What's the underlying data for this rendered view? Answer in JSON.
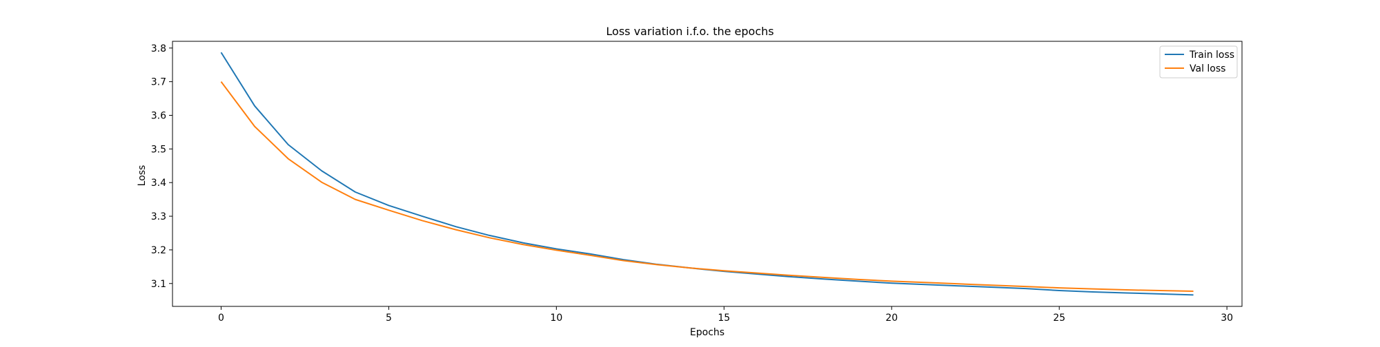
{
  "chart_data": {
    "type": "line",
    "title": "Loss variation i.f.o. the epochs",
    "xlabel": "Epochs",
    "ylabel": "Loss",
    "xlim": [
      -1.45,
      30.45
    ],
    "ylim": [
      3.032,
      3.82
    ],
    "xticks": [
      0,
      5,
      10,
      15,
      20,
      25,
      30
    ],
    "yticks": [
      3.1,
      3.2,
      3.3,
      3.4,
      3.5,
      3.6,
      3.7,
      3.8
    ],
    "grid": false,
    "legend_position": "top-right",
    "x": [
      0,
      1,
      2,
      3,
      4,
      5,
      6,
      7,
      8,
      9,
      10,
      11,
      12,
      13,
      14,
      15,
      16,
      17,
      18,
      19,
      20,
      21,
      22,
      23,
      24,
      25,
      26,
      27,
      28,
      29
    ],
    "series": [
      {
        "name": "Train loss",
        "color": "#1f77b4",
        "values": [
          3.787,
          3.628,
          3.513,
          3.435,
          3.372,
          3.332,
          3.3,
          3.269,
          3.243,
          3.221,
          3.203,
          3.188,
          3.171,
          3.157,
          3.146,
          3.136,
          3.128,
          3.12,
          3.113,
          3.107,
          3.101,
          3.097,
          3.093,
          3.089,
          3.085,
          3.079,
          3.075,
          3.072,
          3.069,
          3.066
        ]
      },
      {
        "name": "Val loss",
        "color": "#ff7f0e",
        "values": [
          3.7,
          3.567,
          3.471,
          3.401,
          3.35,
          3.318,
          3.287,
          3.26,
          3.236,
          3.216,
          3.199,
          3.184,
          3.168,
          3.156,
          3.146,
          3.138,
          3.131,
          3.124,
          3.118,
          3.112,
          3.107,
          3.103,
          3.099,
          3.095,
          3.091,
          3.087,
          3.084,
          3.081,
          3.079,
          3.077
        ]
      }
    ]
  }
}
